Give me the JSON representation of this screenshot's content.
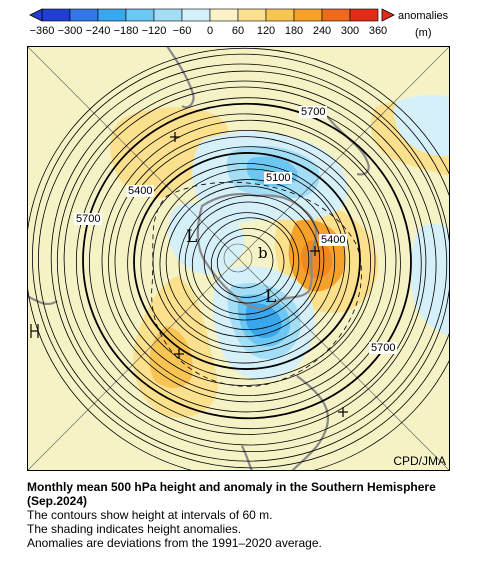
{
  "colorbar": {
    "unit_label": "anomalies",
    "unit": "(m)",
    "ticks": [
      "−360",
      "−300",
      "−240",
      "−180",
      "−120",
      "−60",
      "0",
      "60",
      "120",
      "180",
      "240",
      "300",
      "360"
    ],
    "colors": [
      "#1f3fd0",
      "#2f78e6",
      "#3aa6ee",
      "#6cc8f2",
      "#a3def6",
      "#d6f0fa",
      "#fbf3c7",
      "#fbe08e",
      "#f8c454",
      "#f5a12a",
      "#ee6a1e",
      "#e52a18"
    ]
  },
  "map": {
    "land_color": "#f5f2c6",
    "contour_labels": [
      "5700",
      "5100",
      "5400",
      "5400",
      "5700",
      "5700"
    ],
    "low_markers": [
      "L",
      "L"
    ],
    "pole_marker": "b",
    "credit": "CPD/JMA"
  },
  "caption": {
    "title": "Monthly mean 500 hPa height and anomaly in the Southern Hemisphere (Sep.2024)",
    "line1": "The contours show height at intervals of 60 m.",
    "line2": "The shading indicates height anomalies.",
    "line3": "Anomalies are deviations from the 1991–2020 average."
  }
}
